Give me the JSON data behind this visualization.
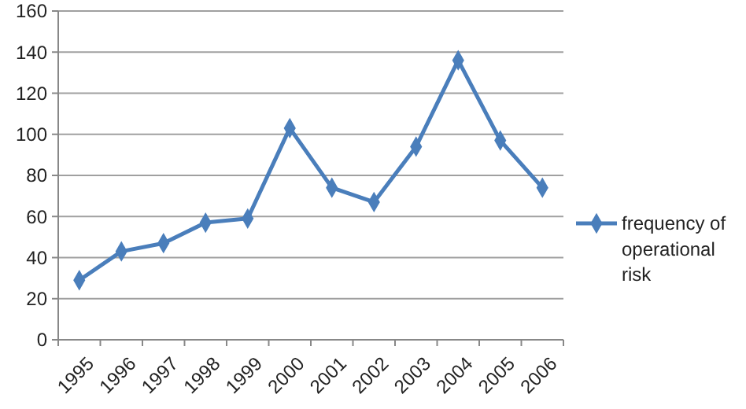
{
  "chart_data": {
    "type": "line",
    "categories": [
      "1995",
      "1996",
      "1997",
      "1998",
      "1999",
      "2000",
      "2001",
      "2002",
      "2003",
      "2004",
      "2005",
      "2006"
    ],
    "series": [
      {
        "name": "frequency of operational risk",
        "color": "#4a7ebb",
        "values": [
          29,
          43,
          47,
          57,
          59,
          103,
          74,
          67,
          94,
          136,
          97,
          74
        ]
      }
    ],
    "ylim": [
      0,
      160
    ],
    "yticks": [
      0,
      20,
      40,
      60,
      80,
      100,
      120,
      140,
      160
    ],
    "grid": "y",
    "legend": "right",
    "marker": "diamond",
    "line_style": "solid"
  }
}
